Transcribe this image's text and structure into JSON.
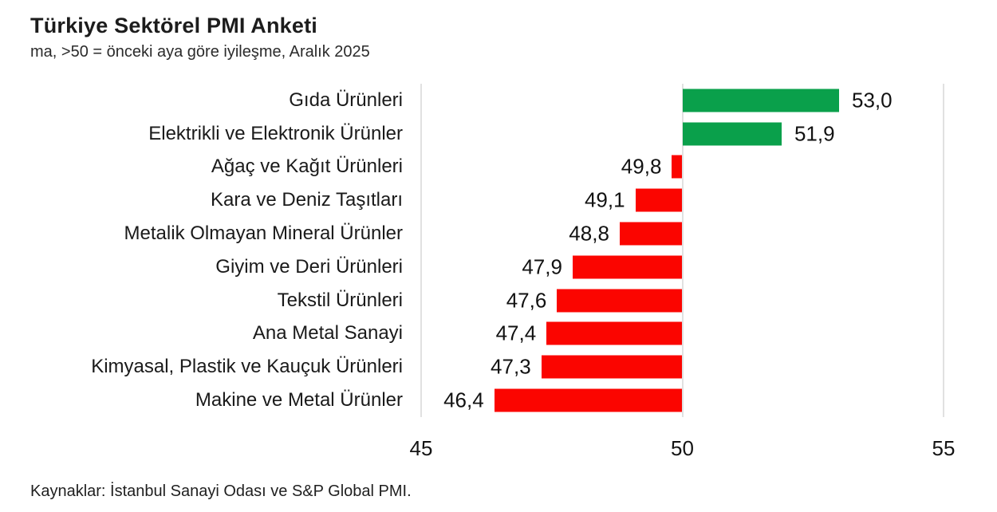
{
  "header": {
    "title": "Türkiye Sektörel PMI Anketi",
    "subtitle": "ma, >50 = önceki aya göre iyileşme, Aralık 2025"
  },
  "footer": {
    "source": "Kaynaklar: İstanbul Sanayi Odası ve S&P Global PMI."
  },
  "colors": {
    "above_baseline": "#0aa04b",
    "below_baseline": "#fb0500",
    "gridline": "#e1e1e1",
    "text": "#1a1a1a"
  },
  "chart_data": {
    "type": "bar",
    "orientation": "horizontal",
    "title": "Türkiye Sektörel PMI Anketi",
    "subtitle": "ma, >50 = önceki aya göre iyileşme, Aralık 2025",
    "baseline": 50,
    "xlim": [
      45,
      55
    ],
    "x_ticks": [
      45,
      50,
      55
    ],
    "x_tick_labels": [
      "45",
      "50",
      "55"
    ],
    "grid": true,
    "legend": false,
    "xlabel": "",
    "ylabel": "",
    "categories": [
      "Gıda Ürünleri",
      "Elektrikli ve Elektronik Ürünler",
      "Ağaç ve Kağıt Ürünleri",
      "Kara ve Deniz Taşıtları",
      "Metalik Olmayan Mineral Ürünler",
      "Giyim ve Deri Ürünleri",
      "Tekstil Ürünleri",
      "Ana Metal Sanayi",
      "Kimyasal, Plastik ve Kauçuk Ürünleri",
      "Makine ve Metal Ürünler"
    ],
    "values": [
      53.0,
      51.9,
      49.8,
      49.1,
      48.8,
      47.9,
      47.6,
      47.4,
      47.3,
      46.4
    ],
    "value_labels": [
      "53,0",
      "51,9",
      "49,8",
      "49,1",
      "48,8",
      "47,9",
      "47,6",
      "47,4",
      "47,3",
      "46,4"
    ]
  }
}
